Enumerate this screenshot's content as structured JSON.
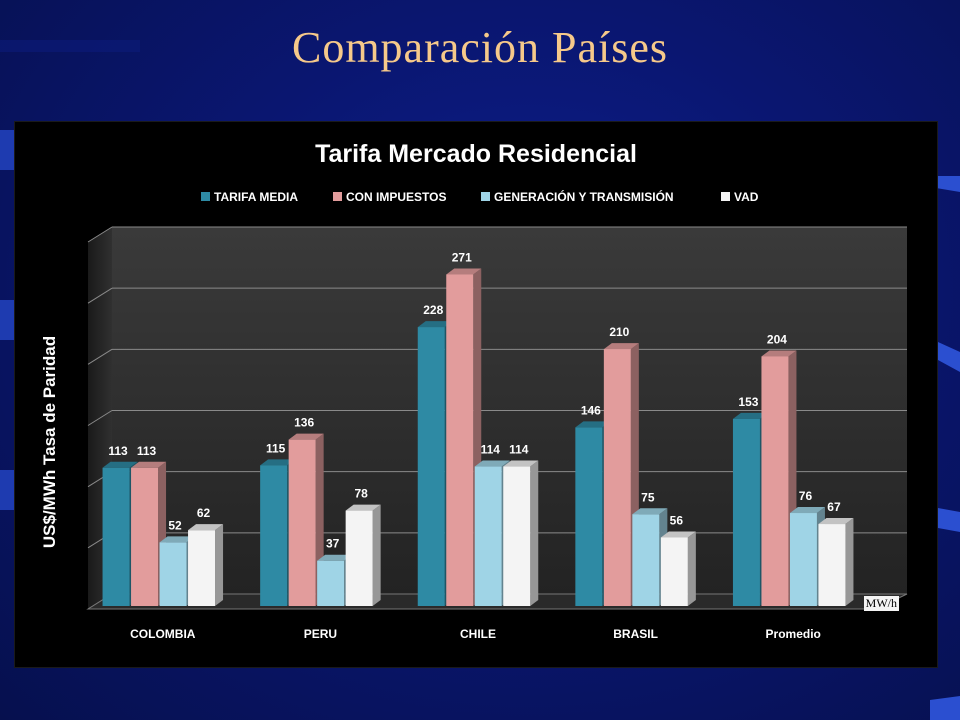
{
  "slide": {
    "title": "Comparación Países",
    "unit_note": "MW/h"
  },
  "colors": {
    "background": "#0a1670",
    "title": "#f6c98a"
  },
  "chart_data": {
    "type": "bar",
    "title": "Tarifa  Mercado Residencial",
    "ylabel": "US$/MWh  Tasa de Paridad",
    "xlabel": "",
    "ylim": [
      0,
      300
    ],
    "grid": true,
    "legend_position": "top",
    "categories": [
      "COLOMBIA",
      "PERU",
      "CHILE",
      "BRASIL",
      "Promedio"
    ],
    "series": [
      {
        "name": "TARIFA MEDIA",
        "color": "#2e8aa4",
        "values": [
          113,
          115,
          228,
          146,
          153
        ]
      },
      {
        "name": "CON IMPUESTOS",
        "color": "#e29c9c",
        "values": [
          113,
          136,
          271,
          210,
          204
        ]
      },
      {
        "name": "GENERACIÓN Y TRANSMISIÓN",
        "color": "#9fd4e6",
        "values": [
          52,
          37,
          114,
          75,
          76
        ]
      },
      {
        "name": "VAD",
        "color": "#f4f4f4",
        "values": [
          62,
          78,
          114,
          56,
          67
        ]
      }
    ]
  }
}
